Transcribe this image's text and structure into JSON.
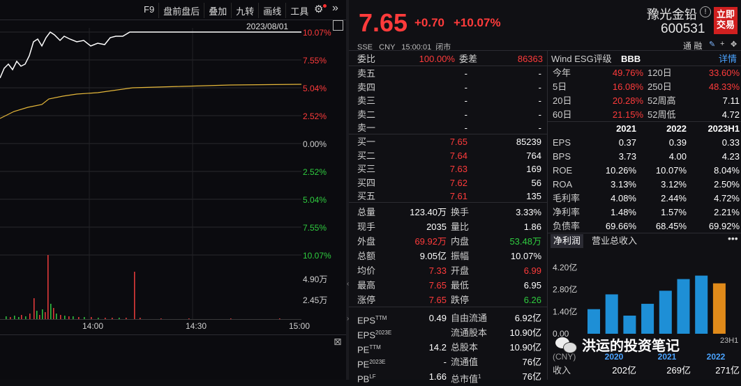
{
  "toolbar": {
    "items": [
      "F9",
      "盘前盘后",
      "叠加",
      "九转",
      "画线",
      "工具"
    ]
  },
  "chart": {
    "date": "2023/08/01",
    "price_axis": [
      {
        "label": "10.07%",
        "color": "#ff3b3b"
      },
      {
        "label": "7.55%",
        "color": "#ff3b3b"
      },
      {
        "label": "5.04%",
        "color": "#ff3b3b"
      },
      {
        "label": "2.52%",
        "color": "#ff3b3b"
      },
      {
        "label": "0.00%",
        "color": "#cfcfcf"
      },
      {
        "label": "2.52%",
        "color": "#2fcc3f"
      },
      {
        "label": "5.04%",
        "color": "#2fcc3f"
      },
      {
        "label": "7.55%",
        "color": "#2fcc3f"
      }
    ],
    "volume_axis": [
      {
        "label": "10.07%",
        "color": "#2fcc3f"
      },
      {
        "label": "4.90万",
        "color": "#cfcfcf"
      },
      {
        "label": "2.45万",
        "color": "#cfcfcf"
      }
    ],
    "times": [
      "14:00",
      "14:30",
      "15:00"
    ],
    "price_line": [
      96,
      98,
      102,
      99,
      100,
      97,
      95,
      96,
      97,
      99,
      100,
      100,
      101,
      100,
      100,
      100,
      101,
      100,
      101,
      100,
      100,
      100,
      100,
      100,
      100,
      100,
      100,
      100,
      100,
      100,
      100,
      100,
      100,
      100,
      100,
      100,
      100
    ],
    "avg_line": [
      10,
      14,
      18,
      22,
      24,
      30,
      36,
      42,
      46,
      49,
      52,
      54,
      56,
      57,
      58,
      59,
      60,
      61,
      62,
      63,
      64,
      65,
      66,
      67,
      68,
      69,
      70,
      70,
      71,
      71,
      72,
      72,
      72,
      72,
      72,
      72,
      72
    ]
  },
  "stock": {
    "price": "7.65",
    "change": "+0.70",
    "change_pct": "+10.07%",
    "name": "豫光金铅",
    "code": "600531",
    "trade_btn": [
      "立即",
      "交易"
    ],
    "exchange_line": "SSE   CNY   15:00:01  闭市",
    "small_icons": "通 融"
  },
  "order_book": {
    "weibi_label": "委比",
    "weibi_value": "100.00%",
    "weicha_label": "委差",
    "weicha_value": "86363",
    "asks": [
      {
        "label": "卖五",
        "price": "-",
        "vol": "-"
      },
      {
        "label": "卖四",
        "price": "-",
        "vol": "-"
      },
      {
        "label": "卖三",
        "price": "-",
        "vol": "-"
      },
      {
        "label": "卖二",
        "price": "-",
        "vol": "-"
      },
      {
        "label": "卖一",
        "price": "-",
        "vol": "-"
      }
    ],
    "bids": [
      {
        "label": "买一",
        "price": "7.65",
        "vol": "85239"
      },
      {
        "label": "买二",
        "price": "7.64",
        "vol": "764"
      },
      {
        "label": "买三",
        "price": "7.63",
        "vol": "169"
      },
      {
        "label": "买四",
        "price": "7.62",
        "vol": "56"
      },
      {
        "label": "买五",
        "price": "7.61",
        "vol": "135"
      }
    ]
  },
  "stats": [
    {
      "l1": "总量",
      "v1": "123.40万",
      "c1": "white",
      "l2": "换手",
      "v2": "3.33%",
      "c2": "white"
    },
    {
      "l1": "现手",
      "v1": "2035",
      "c1": "white",
      "l2": "量比",
      "v2": "1.86",
      "c2": "white"
    },
    {
      "l1": "外盘",
      "v1": "69.92万",
      "c1": "red",
      "l2": "内盘",
      "v2": "53.48万",
      "c2": "green"
    },
    {
      "l1": "总额",
      "v1": "9.05亿",
      "c1": "white",
      "l2": "振幅",
      "v2": "10.07%",
      "c2": "white"
    },
    {
      "l1": "均价",
      "v1": "7.33",
      "c1": "red",
      "l2": "开盘",
      "v2": "6.99",
      "c2": "red"
    },
    {
      "l1": "最高",
      "v1": "7.65",
      "c1": "red",
      "l2": "最低",
      "v2": "6.95",
      "c2": "white"
    },
    {
      "l1": "涨停",
      "v1": "7.65",
      "c1": "red",
      "l2": "跌停",
      "v2": "6.26",
      "c2": "green"
    }
  ],
  "valuation": [
    {
      "l1": "EPS",
      "s1": "TTM",
      "v1": "0.49",
      "l2": "自由流通",
      "v2": "6.92亿"
    },
    {
      "l1": "EPS",
      "s1": "2023E",
      "v1": "",
      "l2": "流通股本",
      "v2": "10.90亿"
    },
    {
      "l1": "PE",
      "s1": "TTM",
      "v1": "14.2",
      "l2": "总股本",
      "v2": "10.90亿"
    },
    {
      "l1": "PE",
      "s1": "2023E",
      "v1": "-",
      "l2": "流通值",
      "v2": "76亿"
    },
    {
      "l1": "PB",
      "s1": "LF",
      "v1": "1.66",
      "l2": "总市值",
      "s2": "1",
      "v2": "76亿"
    }
  ],
  "esg": {
    "label": "Wind ESG评级",
    "rating": "BBB",
    "detail": "详情"
  },
  "returns": [
    {
      "l1": "今年",
      "v1": "49.76%",
      "l2": "120日",
      "v2": "33.60%",
      "c2": "red"
    },
    {
      "l1": "5日",
      "v1": "16.08%",
      "l2": "250日",
      "v2": "48.33%",
      "c2": "red"
    },
    {
      "l1": "20日",
      "v1": "20.28%",
      "l2": "52周高",
      "v2": "7.11",
      "c2": "white"
    },
    {
      "l1": "60日",
      "v1": "21.15%",
      "l2": "52周低",
      "v2": "4.72",
      "c2": "white"
    }
  ],
  "fin_table": {
    "years": [
      "2021",
      "2022",
      "2023H1"
    ],
    "rows": [
      {
        "label": "EPS",
        "vals": [
          "0.37",
          "0.39",
          "0.33"
        ]
      },
      {
        "label": "BPS",
        "vals": [
          "3.73",
          "4.00",
          "4.23"
        ]
      },
      {
        "label": "ROE",
        "vals": [
          "10.26%",
          "10.07%",
          "8.04%"
        ]
      },
      {
        "label": "ROA",
        "vals": [
          "3.13%",
          "3.12%",
          "2.50%"
        ]
      },
      {
        "label": "毛利率",
        "vals": [
          "4.08%",
          "2.44%",
          "4.72%"
        ]
      },
      {
        "label": "净利率",
        "vals": [
          "1.48%",
          "1.57%",
          "2.21%"
        ]
      },
      {
        "label": "负债率",
        "vals": [
          "69.66%",
          "68.45%",
          "69.92%"
        ]
      }
    ]
  },
  "bar_tabs": [
    "净利润",
    "营业总收入"
  ],
  "chart_data": {
    "type": "bar",
    "title": "",
    "yticks": [
      "4.20亿",
      "2.80亿",
      "1.40亿",
      "0.00"
    ],
    "ylim": [
      0,
      4.6
    ],
    "values": [
      1.56,
      2.5,
      1.15,
      1.9,
      2.73,
      3.47,
      3.69,
      3.2
    ],
    "highlight_index": 7,
    "colors": {
      "normal": "#1e8fd6",
      "highlight": "#e08a1a"
    },
    "x_labels": [
      "2020",
      "2021",
      "2022",
      "23H1"
    ],
    "unit": "(CNY)"
  },
  "revenue": {
    "label": "收入",
    "vals": [
      "202亿",
      "269亿",
      "271亿"
    ]
  },
  "watermark": "洪运的投资笔记"
}
